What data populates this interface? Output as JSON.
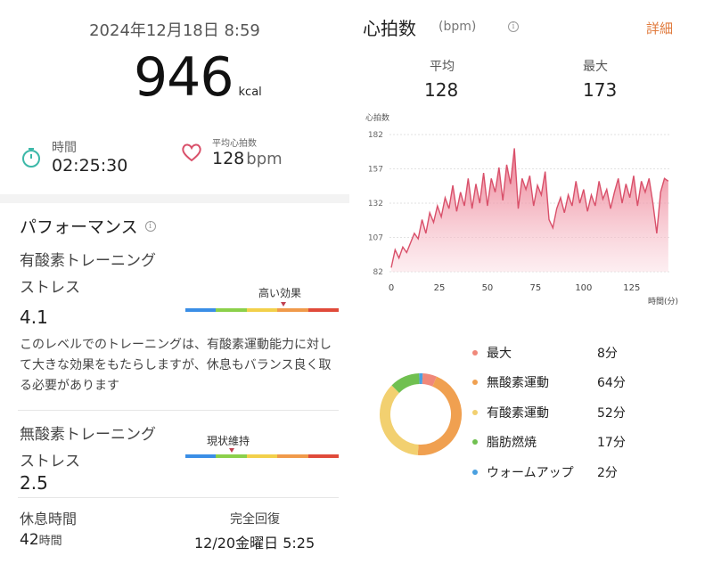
{
  "summary": {
    "date": "2024年12月18日 8:59",
    "calories": "946",
    "calories_unit": "kcal",
    "duration_label": "時間",
    "duration_value": "02:25:30",
    "avg_hr_label": "平均心拍数",
    "avg_hr_value": "128",
    "avg_hr_unit": "bpm"
  },
  "performance": {
    "title": "パフォーマンス",
    "info_icon": "i",
    "aerobic": {
      "title_line1": "有酸素トレーニング",
      "title_line2": "ストレス",
      "value": "4.1",
      "level_label": "高い効果",
      "level_fraction": 0.64
    },
    "description": "このレベルでのトレーニングは、有酸素運動能力に対して大きな効果をもたらしますが、休息もバランス良く取る必要があります",
    "anaerobic": {
      "title_line1": "無酸素トレーニング",
      "title_line2": "ストレス",
      "value": "2.5",
      "level_label": "現状維持",
      "level_fraction": 0.3
    },
    "scale_colors": [
      "#3a8ee6",
      "#8bd04a",
      "#f2d04a",
      "#f09a4a",
      "#e04a3a"
    ],
    "rest_label": "休息時間",
    "rest_value": "42",
    "rest_unit": "時間",
    "recovery_label": "完全回復",
    "recovery_value": "12/20金曜日 5:25"
  },
  "heart_rate": {
    "title": "心拍数",
    "unit": "(bpm)",
    "info_icon": "i",
    "detail_link": "詳細",
    "avg_label": "平均",
    "avg_value": "128",
    "max_label": "最大",
    "max_value": "173"
  },
  "chart_data": {
    "type": "area",
    "ylabel": "心拍数",
    "xlabel": "時間(分)",
    "y_ticks": [
      "182",
      "157",
      "132",
      "107",
      "82"
    ],
    "x_ticks": [
      "0",
      "25",
      "50",
      "75",
      "100",
      "125"
    ],
    "ylim": [
      82,
      182
    ],
    "xlim": [
      0,
      145
    ],
    "grid": true,
    "color": "#d9506a",
    "x": [
      0,
      2,
      4,
      6,
      8,
      10,
      12,
      14,
      16,
      18,
      20,
      22,
      24,
      26,
      28,
      30,
      32,
      34,
      36,
      38,
      40,
      42,
      44,
      46,
      48,
      50,
      52,
      54,
      56,
      58,
      60,
      62,
      64,
      66,
      68,
      70,
      72,
      74,
      76,
      78,
      80,
      82,
      84,
      86,
      88,
      90,
      92,
      94,
      96,
      98,
      100,
      102,
      104,
      106,
      108,
      110,
      112,
      114,
      116,
      118,
      120,
      122,
      124,
      126,
      128,
      130,
      132,
      134,
      136,
      138,
      140,
      142,
      144
    ],
    "values": [
      85,
      98,
      92,
      100,
      96,
      103,
      110,
      106,
      120,
      110,
      125,
      118,
      130,
      122,
      136,
      128,
      145,
      126,
      140,
      130,
      150,
      128,
      146,
      132,
      154,
      130,
      150,
      140,
      158,
      134,
      160,
      146,
      172,
      128,
      150,
      142,
      152,
      130,
      145,
      138,
      155,
      120,
      114,
      128,
      136,
      125,
      138,
      130,
      148,
      132,
      142,
      126,
      138,
      130,
      148,
      135,
      142,
      128,
      140,
      150,
      132,
      146,
      136,
      152,
      130,
      148,
      140,
      150,
      132,
      110,
      140,
      150,
      148
    ]
  },
  "zones": {
    "colors": [
      "#f0887a",
      "#f0a050",
      "#f2d070",
      "#70c050",
      "#4aa0e0"
    ],
    "items": [
      {
        "label": "最大",
        "value": "8分",
        "minutes": 8
      },
      {
        "label": "無酸素運動",
        "value": "64分",
        "minutes": 64
      },
      {
        "label": "有酸素運動",
        "value": "52分",
        "minutes": 52
      },
      {
        "label": "脂肪燃焼",
        "value": "17分",
        "minutes": 17
      },
      {
        "label": "ウォームアップ",
        "value": "2分",
        "minutes": 2
      }
    ]
  }
}
